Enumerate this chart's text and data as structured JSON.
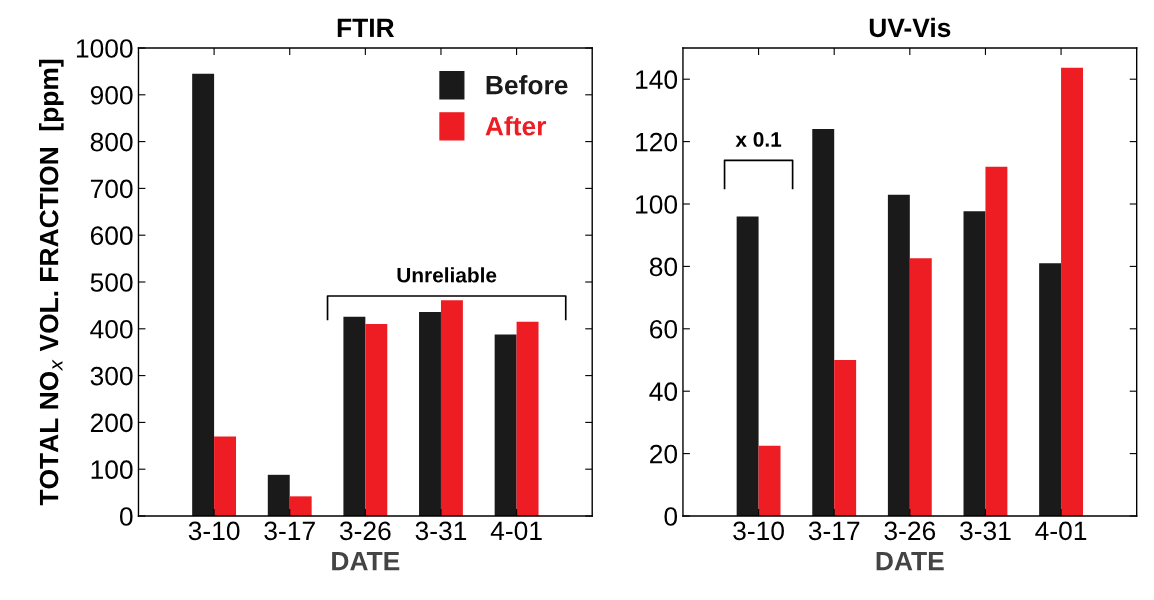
{
  "chart_data": [
    {
      "type": "bar",
      "title": "FTIR",
      "xlabel": "DATE",
      "ylabel": "TOTAL NO$_{x}$ VOL. FRACTION  [ppm]",
      "categories": [
        "3-10",
        "3-17",
        "3-26",
        "3-31",
        "4-01"
      ],
      "series": [
        {
          "name": "Before",
          "color": "#1a1a1a",
          "values": [
            945,
            88,
            426,
            436,
            388
          ]
        },
        {
          "name": "After",
          "color": "#ee1c23",
          "values": [
            170,
            42,
            410,
            461,
            415
          ]
        }
      ],
      "ylim": [
        0,
        1000
      ],
      "yticks": [
        0,
        100,
        200,
        300,
        400,
        500,
        600,
        700,
        800,
        900,
        1000
      ],
      "annotations": [
        "Unreliable"
      ],
      "legend": "top right",
      "grid": false
    },
    {
      "type": "bar",
      "title": "UV-Vis",
      "xlabel": "DATE",
      "categories": [
        "3-10",
        "3-17",
        "3-26",
        "3-31",
        "4-01"
      ],
      "series": [
        {
          "color": "#1a1a1a",
          "values": [
            96,
            124,
            103,
            97.7,
            81
          ]
        },
        {
          "color": "#ee1c23",
          "values": [
            22.5,
            50,
            82.6,
            111.9,
            143.7
          ]
        }
      ],
      "ylim": [
        0,
        150
      ],
      "yticks": [
        0,
        20,
        40,
        60,
        80,
        100,
        120,
        140
      ],
      "annotations": [
        "x 0.1"
      ],
      "grid": false
    }
  ]
}
